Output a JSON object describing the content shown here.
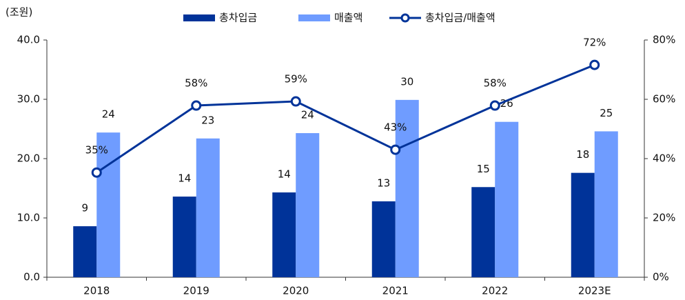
{
  "chart_data": {
    "type": "bar",
    "unit_label": "(조원)",
    "categories": [
      "2018",
      "2019",
      "2020",
      "2021",
      "2022",
      "2023E"
    ],
    "series": [
      {
        "name": "총차입금",
        "color": "#003399",
        "values": [
          8.6,
          13.6,
          14.3,
          12.8,
          15.2,
          17.6
        ],
        "value_labels": [
          "9",
          "14",
          "14",
          "13",
          "15",
          "18"
        ]
      },
      {
        "name": "매출액",
        "color": "#6f9cff",
        "values": [
          24.4,
          23.4,
          24.3,
          29.9,
          26.2,
          24.6
        ],
        "value_labels": [
          "24",
          "23",
          "24",
          "30",
          "26",
          "25"
        ]
      },
      {
        "name": "총차입금/매출액",
        "type": "line",
        "axis": "y2",
        "color": "#003399",
        "values": [
          35.3,
          57.9,
          59.3,
          43.0,
          57.9,
          71.6
        ],
        "value_labels": [
          "35%",
          "58%",
          "59%",
          "43%",
          "58%",
          "72%"
        ]
      }
    ],
    "ylim": [
      0,
      40
    ],
    "yticks": [
      {
        "value": 0,
        "label": "0.0"
      },
      {
        "value": 10,
        "label": "10.0"
      },
      {
        "value": 20,
        "label": "20.0"
      },
      {
        "value": 30,
        "label": "30.0"
      },
      {
        "value": 40,
        "label": "40.0"
      }
    ],
    "y2lim": [
      0,
      80
    ],
    "y2ticks": [
      {
        "value": 0,
        "label": "0%"
      },
      {
        "value": 20,
        "label": "20%"
      },
      {
        "value": 40,
        "label": "40%"
      },
      {
        "value": 60,
        "label": "60%"
      },
      {
        "value": 80,
        "label": "80%"
      }
    ],
    "grid": false
  }
}
